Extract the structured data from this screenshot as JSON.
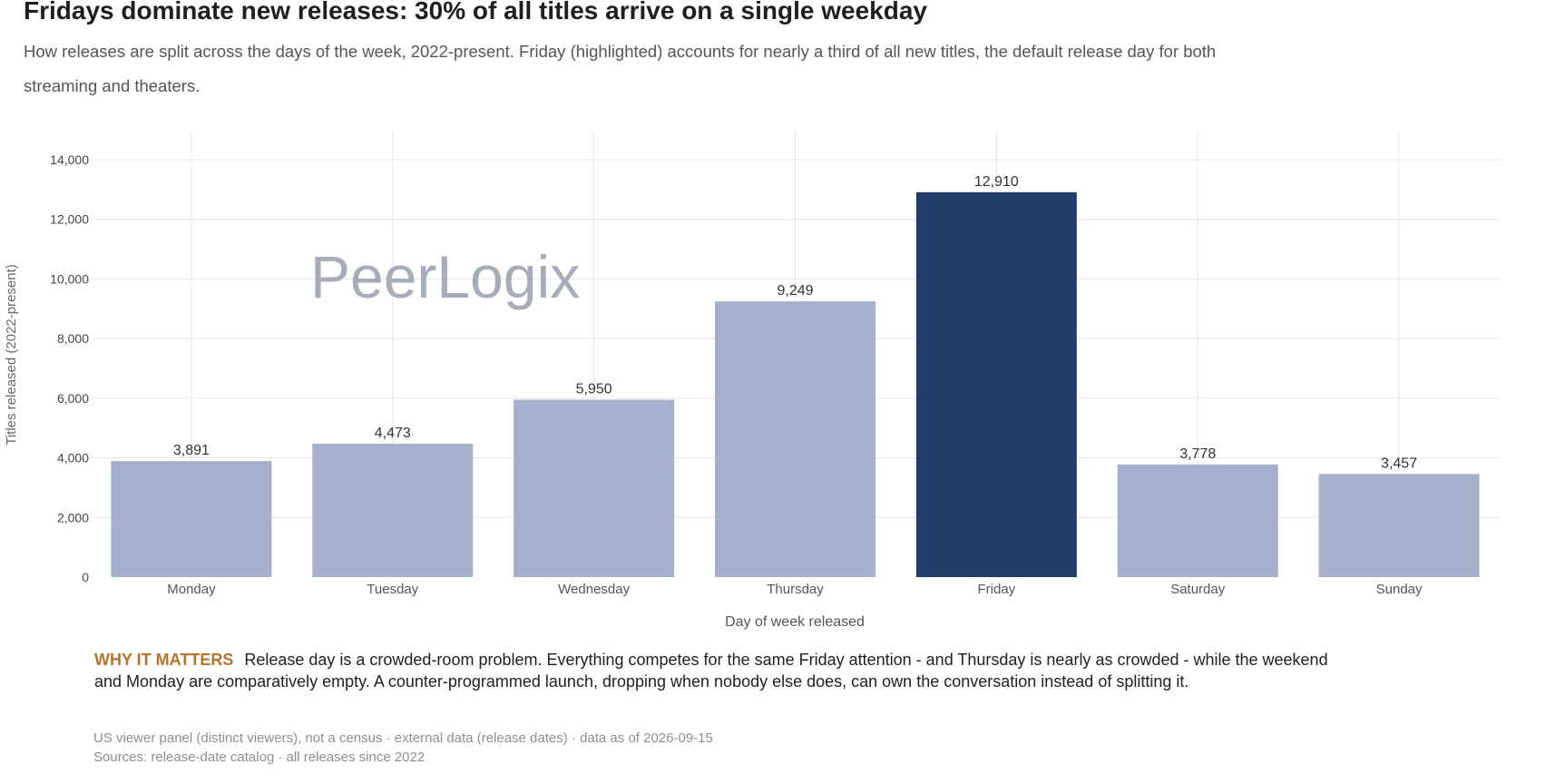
{
  "header": {
    "title": "Fridays dominate new releases: 30% of all titles arrive on a single weekday",
    "subtitle": "How releases are split across the days of the week, 2022-present. Friday (highlighted) accounts for nearly a third of all new titles, the default release day for both streaming and theaters."
  },
  "watermark": "PeerLogix",
  "colors": {
    "highlight": "#233d69",
    "default_bar": "#a6b0cd",
    "grid": "#e6e6e6",
    "accent_label": "#b5742a"
  },
  "chart_data": {
    "type": "bar",
    "categories": [
      "Monday",
      "Tuesday",
      "Wednesday",
      "Thursday",
      "Friday",
      "Saturday",
      "Sunday"
    ],
    "values": [
      3891,
      4473,
      5950,
      9249,
      12910,
      3778,
      3457
    ],
    "value_labels": [
      "3,891",
      "4,473",
      "5,950",
      "9,249",
      "12,910",
      "3,778",
      "3,457"
    ],
    "highlighted": "Friday",
    "xlabel": "Day of week released",
    "ylabel": "Titles released (2022-present)",
    "ylim": [
      0,
      15000
    ],
    "yticks": [
      0,
      2000,
      4000,
      6000,
      8000,
      10000,
      12000,
      14000
    ],
    "ytick_labels": [
      "0",
      "2,000",
      "4,000",
      "6,000",
      "8,000",
      "10,000",
      "12,000",
      "14,000"
    ],
    "grid": true,
    "legend": "none"
  },
  "why_it_matters": {
    "label": "WHY IT MATTERS",
    "text": "Release day is a crowded-room problem. Everything competes for the same Friday attention - and Thursday is nearly as crowded - while the weekend and Monday are comparatively empty. A counter-programmed launch, dropping when nobody else does, can own the conversation instead of splitting it."
  },
  "footnotes": {
    "line1": "US viewer panel (distinct viewers), not a census · external data (release dates) · data as of 2026-09-15",
    "line2": "Sources: release-date catalog · all releases since 2022"
  }
}
